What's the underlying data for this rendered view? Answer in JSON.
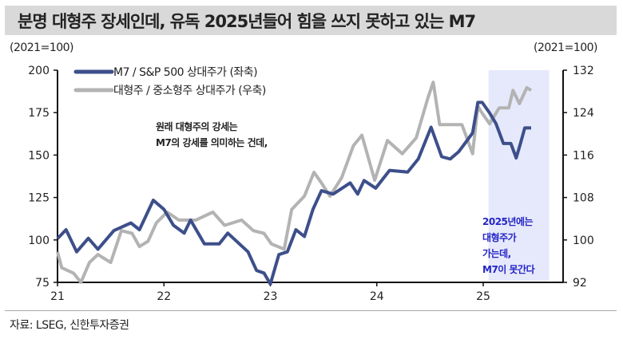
{
  "title": "분명 대형주 장세인데, 유독 2025년들어 힘을 쓰지 못하고 있는 M7",
  "source": "자료: LSEG, 신한투자증권",
  "chart_data": {
    "type": "line",
    "title": "분명 대형주 장세인데, 유독 2025년들어 힘을 쓰지 못하고 있는 M7",
    "left_unit": "(2021=100)",
    "right_unit": "(2021=100)",
    "x_ticks": [
      {
        "value": 2021,
        "label": "21"
      },
      {
        "value": 2022,
        "label": "22"
      },
      {
        "value": 2023,
        "label": "23"
      },
      {
        "value": 2024,
        "label": "24"
      },
      {
        "value": 2025,
        "label": "25"
      }
    ],
    "xlim": [
      2021,
      2025.75
    ],
    "ylim_left": [
      75,
      200
    ],
    "yticks_left": [
      "75",
      "100",
      "125",
      "150",
      "175",
      "200"
    ],
    "ylim_right": [
      92,
      132
    ],
    "yticks_right": [
      "92",
      "100",
      "108",
      "116",
      "124",
      "132"
    ],
    "grid": false,
    "legend_position": "top-left",
    "highlight_region": {
      "from": 2025.05,
      "to": 2025.62,
      "color": "#e6e9fb"
    },
    "series": [
      {
        "name": "M7 / S&P 500 상대주가 (좌축)",
        "axis": "left",
        "color": "#3d4f8a",
        "x": [
          2021.0,
          2021.08,
          2021.18,
          2021.29,
          2021.38,
          2021.53,
          2021.69,
          2021.77,
          2021.9,
          2022.0,
          2022.09,
          2022.19,
          2022.25,
          2022.38,
          2022.52,
          2022.6,
          2022.79,
          2022.87,
          2022.94,
          2023.0,
          2023.08,
          2023.16,
          2023.24,
          2023.32,
          2023.4,
          2023.48,
          2023.59,
          2023.75,
          2023.82,
          2023.88,
          2023.99,
          2024.12,
          2024.29,
          2024.39,
          2024.51,
          2024.61,
          2024.69,
          2024.77,
          2024.83,
          2024.9,
          2024.95,
          2024.99,
          2025.06,
          2025.12,
          2025.19,
          2025.26,
          2025.31,
          2025.35,
          2025.39,
          2025.45
        ],
        "y": [
          100.8,
          106,
          93,
          101,
          94.5,
          105.5,
          110,
          106,
          123.4,
          118,
          108.6,
          104,
          111.7,
          97.7,
          97.7,
          104,
          93,
          82,
          80.5,
          74,
          91.4,
          93,
          106,
          102,
          118,
          129,
          127,
          133.6,
          127,
          135,
          130.5,
          141,
          140,
          147.7,
          166.4,
          149,
          147.7,
          152,
          157,
          163,
          181,
          181,
          174.8,
          168.5,
          156.8,
          156.8,
          148.3,
          156.8,
          166,
          166
        ]
      },
      {
        "name": "대형주 / 중소형주 상대주가 (우축)",
        "axis": "right",
        "color": "#b3b3b3",
        "x": [
          2021.0,
          2021.04,
          2021.15,
          2021.22,
          2021.3,
          2021.38,
          2021.5,
          2021.6,
          2021.7,
          2021.77,
          2021.85,
          2021.93,
          2022.03,
          2022.14,
          2022.3,
          2022.46,
          2022.57,
          2022.73,
          2022.84,
          2022.94,
          2023.01,
          2023.13,
          2023.2,
          2023.32,
          2023.41,
          2023.48,
          2023.56,
          2023.67,
          2023.78,
          2023.86,
          2023.98,
          2024.1,
          2024.24,
          2024.37,
          2024.48,
          2024.53,
          2024.59,
          2024.67,
          2024.8,
          2024.9,
          2024.95,
          2024.98,
          2025.06,
          2025.15,
          2025.24,
          2025.28,
          2025.34,
          2025.41,
          2025.45
        ],
        "y": [
          97.75,
          94.75,
          93.75,
          92,
          95.75,
          97.25,
          95.75,
          101.75,
          101.25,
          98.75,
          99.75,
          103.25,
          105.25,
          103.75,
          103.75,
          105.25,
          102.75,
          103.75,
          101.75,
          101.25,
          99.25,
          98.25,
          105.75,
          108.25,
          112.75,
          110.75,
          108.25,
          111.75,
          117.75,
          119.75,
          111.25,
          118.75,
          116.25,
          119.25,
          126.75,
          129.75,
          121.75,
          121.75,
          121.75,
          116.25,
          125.25,
          124.2,
          121.9,
          124.9,
          124.9,
          128.2,
          125.7,
          128.7,
          128.2
        ]
      }
    ],
    "annotations": [
      {
        "lines": [
          "원래 대형주의 강세는",
          "M7의 강세를 의미하는 건데,"
        ],
        "color": "#222222"
      },
      {
        "lines": [
          "2025년에는",
          "대형주가",
          "가는데,",
          "M7이 못간다"
        ],
        "color": "#2424c8"
      }
    ]
  }
}
